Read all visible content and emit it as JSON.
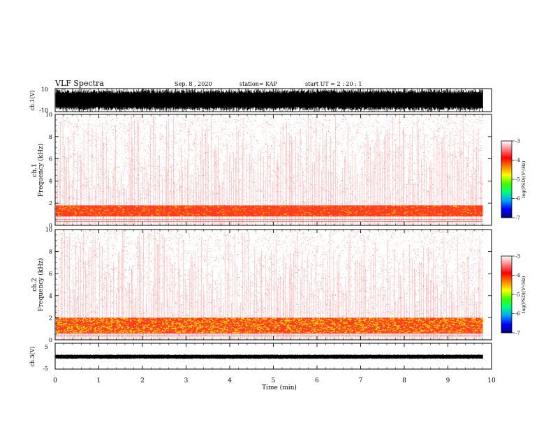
{
  "header": {
    "title": "VLF Spectra",
    "date": "Sep. 8  , 2020",
    "station": "station= KAP",
    "start_ut": "start  UT  =   2  : 20 : 1"
  },
  "chart_data": [
    {
      "id": "ch1-waveform",
      "type": "line",
      "ylabel": "ch.1(V)",
      "ylim": [
        -10,
        10
      ],
      "yticks": [
        10,
        -10
      ],
      "xlim": [
        0,
        10
      ],
      "data_extent_min": 9.8,
      "description_values": "dense broadband waveform saturating between -10 and 10 V"
    },
    {
      "id": "ch1-spectrogram",
      "type": "heatmap",
      "ylabel_top": "ch.1",
      "ylabel": "Frequency  (kHz)",
      "ylim": [
        0,
        10
      ],
      "yticks": [
        0,
        2,
        4,
        6,
        8,
        10
      ],
      "xlim": [
        0,
        10
      ],
      "intense_band_khz": [
        0.8,
        1.8
      ],
      "intensity": "moderate"
    },
    {
      "id": "ch2-spectrogram",
      "type": "heatmap",
      "ylabel_top": "ch.2",
      "ylabel": "Frequency  (kHz)",
      "ylim": [
        0,
        10
      ],
      "yticks": [
        0,
        2,
        4,
        6,
        8,
        10
      ],
      "xlim": [
        0,
        10
      ],
      "intense_band_khz": [
        0.6,
        2.0
      ],
      "intensity": "high"
    },
    {
      "id": "ch3-waveform",
      "type": "line",
      "ylabel": "ch.3(V)",
      "ylim": [
        -5,
        5
      ],
      "yticks": [
        5,
        0,
        -5
      ],
      "ytick_labels": [
        "5",
        "",
        "-5"
      ],
      "xlim": [
        0,
        10
      ],
      "band": [
        -0.8,
        0.4
      ]
    }
  ],
  "x_axis": {
    "label": "Time  (min)",
    "ticks": [
      "0",
      "1",
      "2",
      "3",
      "4",
      "5",
      "6",
      "7",
      "8",
      "9",
      "10"
    ]
  },
  "colorbar": {
    "label": "log(PSD)(V²/Hz)",
    "range": [
      -7,
      -3
    ],
    "ticks": [
      "-3",
      "-4",
      "-5",
      "-6",
      "-7"
    ],
    "colors": [
      "#000080",
      "#0000ff",
      "#00a0ff",
      "#00ff80",
      "#40ff00",
      "#ffff00",
      "#ff8000",
      "#ff0000",
      "#ff8080",
      "#ffffff"
    ]
  }
}
